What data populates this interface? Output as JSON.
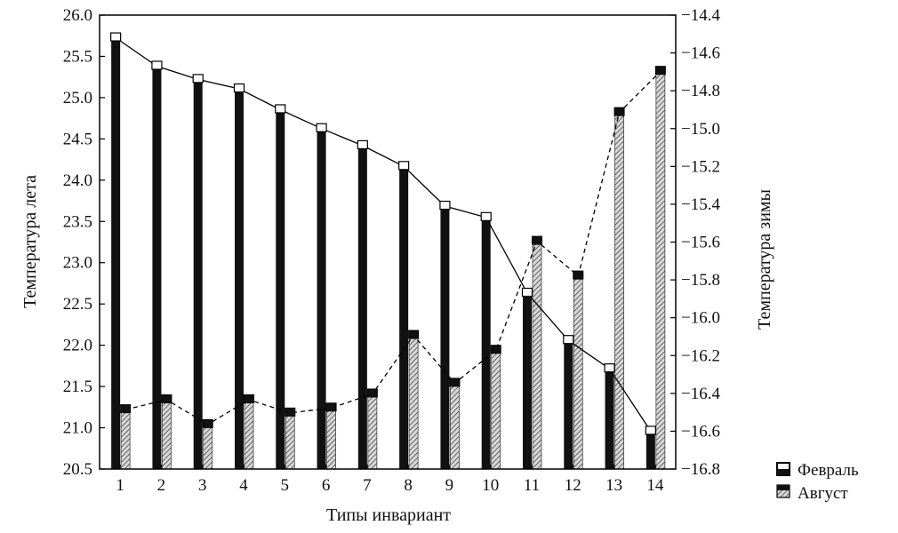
{
  "chart_data": {
    "type": "bar",
    "categories": [
      "1",
      "2",
      "3",
      "4",
      "5",
      "6",
      "7",
      "8",
      "9",
      "10",
      "11",
      "12",
      "13",
      "14"
    ],
    "xlabel": "Типы инвариант",
    "ylabel_left": "Температура лета",
    "ylabel_right": "Температура зимы",
    "ylim_left": [
      20.5,
      26.0
    ],
    "ylim_right": [
      -16.8,
      -14.4
    ],
    "yticks_left": [
      "20.5",
      "21.0",
      "21.5",
      "22.0",
      "22.5",
      "23.0",
      "23.5",
      "24.0",
      "24.5",
      "25.0",
      "25.5",
      "26.0"
    ],
    "yticks_right": [
      "−16.8",
      "−16.6",
      "−16.4",
      "−16.2",
      "−16.0",
      "−15.8",
      "−15.6",
      "−15.4",
      "−15.2",
      "−15.0",
      "−14.8",
      "−14.6",
      "−14.4"
    ],
    "grid": false,
    "legend_position": "bottom-right, outside plot",
    "series": [
      {
        "name": "Февраль",
        "axis": "right",
        "bar_fill": "#111111",
        "line_style": "solid",
        "values": [
          -14.52,
          -14.67,
          -14.74,
          -14.79,
          -14.9,
          -15.0,
          -15.09,
          -15.2,
          -15.41,
          -15.47,
          -15.87,
          -16.12,
          -16.27,
          -16.6
        ]
      },
      {
        "name": "Август",
        "axis": "left",
        "bar_fill": "hatched",
        "line_style": "dashed",
        "values": [
          21.22,
          21.34,
          21.04,
          21.34,
          21.18,
          21.24,
          21.41,
          22.12,
          21.54,
          21.94,
          23.26,
          22.84,
          24.82,
          25.32
        ]
      }
    ]
  }
}
